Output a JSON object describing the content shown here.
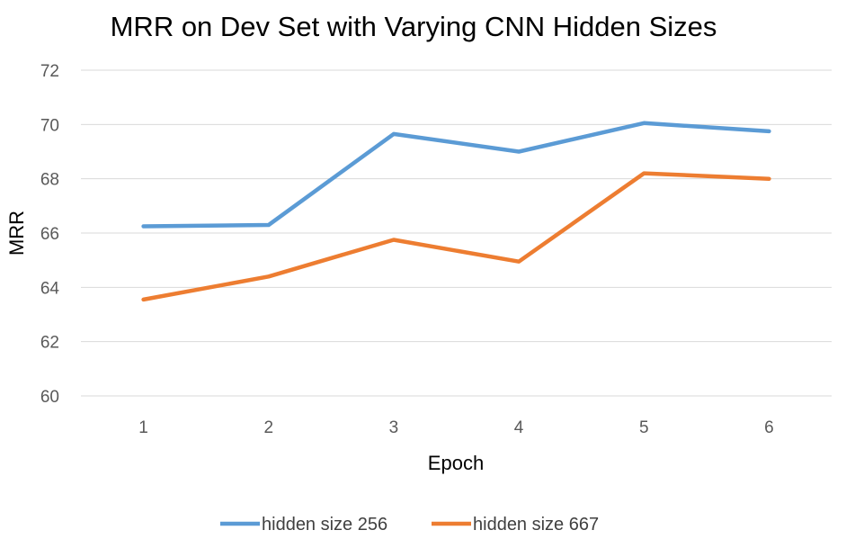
{
  "chart_data": {
    "type": "line",
    "title": "MRR on Dev Set with Varying CNN Hidden Sizes",
    "xlabel": "Epoch",
    "ylabel": "MRR",
    "categories": [
      "1",
      "2",
      "3",
      "4",
      "5",
      "6"
    ],
    "ylim": [
      60,
      72
    ],
    "yticks": [
      60,
      62,
      64,
      66,
      68,
      70,
      72
    ],
    "grid": true,
    "legend_position": "bottom",
    "series": [
      {
        "name": "hidden size 256",
        "color": "#5B9BD5",
        "values": [
          66.25,
          66.3,
          69.65,
          69.0,
          70.05,
          69.75
        ]
      },
      {
        "name": "hidden size 667",
        "color": "#ED7D31",
        "values": [
          63.55,
          64.4,
          65.75,
          64.95,
          68.2,
          68.0
        ]
      }
    ]
  }
}
